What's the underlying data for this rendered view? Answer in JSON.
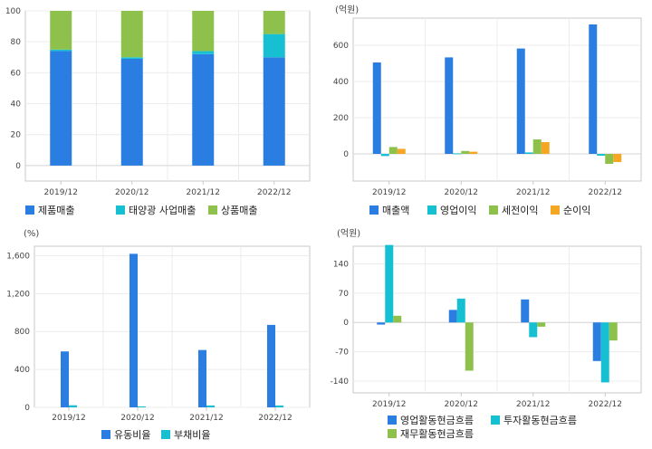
{
  "chart_data": [
    {
      "type": "bar",
      "stacked": true,
      "categories": [
        "2019/12",
        "2020/12",
        "2021/12",
        "2022/12"
      ],
      "series": [
        {
          "name": "제품매출",
          "color": "#2a7de1",
          "values": [
            74,
            69,
            72,
            70
          ]
        },
        {
          "name": "태양광 사업매출",
          "color": "#17bfd3",
          "values": [
            1,
            1,
            2,
            15
          ]
        },
        {
          "name": "상품매출",
          "color": "#8dc14b",
          "values": [
            25,
            30,
            26,
            15
          ]
        }
      ],
      "unit": "",
      "ylim": [
        -10,
        100
      ],
      "yticks": [
        0,
        20,
        40,
        60,
        80,
        100
      ],
      "yticks_labels": [
        "0",
        "20",
        "40",
        "60",
        "80",
        "100"
      ],
      "grid": true,
      "legend": "bottom"
    },
    {
      "type": "bar",
      "categories": [
        "2019/12",
        "2020/12",
        "2021/12",
        "2022/12"
      ],
      "series": [
        {
          "name": "매출액",
          "color": "#2a7de1",
          "values": [
            505,
            533,
            582,
            715
          ]
        },
        {
          "name": "영업이익",
          "color": "#17bfd3",
          "values": [
            -12,
            3,
            8,
            -10
          ]
        },
        {
          "name": "세전이익",
          "color": "#8dc14b",
          "values": [
            38,
            16,
            80,
            -55
          ]
        },
        {
          "name": "순이익",
          "color": "#f5a623",
          "values": [
            28,
            12,
            65,
            -45
          ]
        }
      ],
      "unit": "(억원)",
      "ylim": [
        -150,
        750
      ],
      "yticks": [
        0,
        200,
        400,
        600
      ],
      "yticks_labels": [
        "0",
        "200",
        "400",
        "600"
      ],
      "grid": true,
      "legend": "bottom"
    },
    {
      "type": "bar",
      "categories": [
        "2019/12",
        "2020/12",
        "2021/12",
        "2022/12"
      ],
      "series": [
        {
          "name": "유동비율",
          "color": "#2a7de1",
          "values": [
            590,
            1620,
            605,
            870
          ]
        },
        {
          "name": "부채비율",
          "color": "#17bfd3",
          "values": [
            22,
            10,
            20,
            20
          ]
        }
      ],
      "unit": "(%)",
      "ylim": [
        0,
        1700
      ],
      "yticks": [
        0,
        400,
        800,
        1200,
        1600
      ],
      "yticks_labels": [
        "0",
        "400",
        "800",
        "1,200",
        "1,600"
      ],
      "grid": true,
      "legend": "bottom"
    },
    {
      "type": "bar",
      "categories": [
        "2019/12",
        "2020/12",
        "2021/12",
        "2022/12"
      ],
      "series": [
        {
          "name": "영업활동현금흐름",
          "color": "#2a7de1",
          "values": [
            -5,
            30,
            55,
            -92
          ]
        },
        {
          "name": "투자활동현금흐름",
          "color": "#17bfd3",
          "values": [
            185,
            57,
            -35,
            -143
          ]
        },
        {
          "name": "재무활동현금흐름",
          "color": "#8dc14b",
          "values": [
            16,
            -115,
            -10,
            -43
          ]
        }
      ],
      "unit": "(억원)",
      "ylim": [
        -168,
        182
      ],
      "yticks": [
        -140,
        -70,
        0,
        70,
        140
      ],
      "yticks_labels": [
        "-140",
        "-70",
        "0",
        "70",
        "140"
      ],
      "grid": true,
      "legend": "bottom"
    }
  ]
}
